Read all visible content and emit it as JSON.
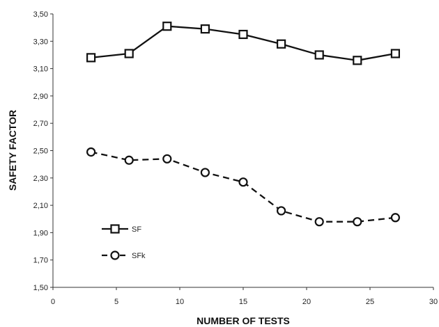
{
  "chart_data": {
    "type": "line",
    "title": "",
    "xlabel": "NUMBER OF TESTS",
    "ylabel": "SAFETY FACTOR",
    "xlim": [
      0,
      30
    ],
    "ylim": [
      1.5,
      3.5
    ],
    "x_ticks": [
      "0",
      "5",
      "10",
      "15",
      "20",
      "25",
      "30"
    ],
    "y_ticks": [
      "1,50",
      "1,70",
      "1,90",
      "2,10",
      "2,30",
      "2,50",
      "2,70",
      "2,90",
      "3,10",
      "3,30",
      "3,50"
    ],
    "grid": false,
    "legend_position": "lower-left",
    "x": [
      3,
      6,
      9,
      12,
      15,
      18,
      21,
      24,
      27
    ],
    "series": [
      {
        "name": "SF",
        "marker": "square",
        "line_style": "solid",
        "color": "#111111",
        "values": [
          3.18,
          3.21,
          3.41,
          3.39,
          3.35,
          3.28,
          3.2,
          3.16,
          3.21
        ]
      },
      {
        "name": "SFk",
        "marker": "circle",
        "line_style": "dashed",
        "color": "#111111",
        "values": [
          2.49,
          2.43,
          2.44,
          2.34,
          2.27,
          2.06,
          1.98,
          1.98,
          2.01
        ]
      }
    ]
  }
}
